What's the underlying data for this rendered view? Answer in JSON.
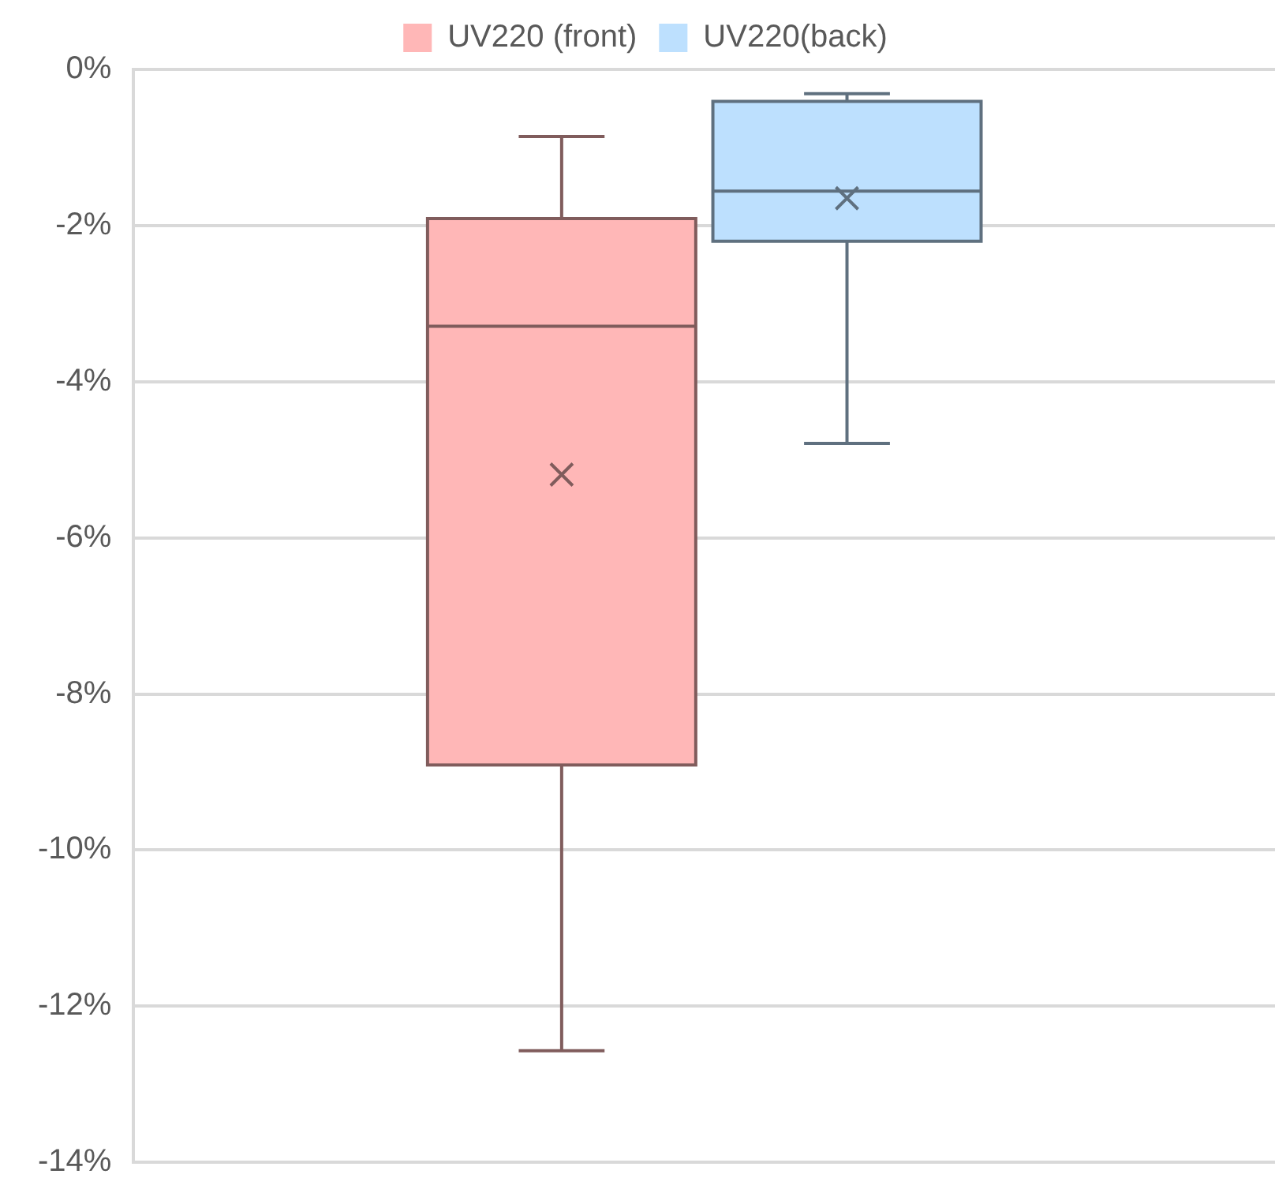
{
  "chart_data": {
    "type": "box",
    "categories": [
      null
    ],
    "series": [
      {
        "name": "UV220 (front)",
        "color": "#ffb7b7",
        "boxes": [
          {
            "low": -12.57,
            "q1": -8.91,
            "median": -3.29,
            "q3": -1.91,
            "high": -0.86,
            "mean": -5.19
          }
        ]
      },
      {
        "name": "UV220(back)",
        "color": "#bde0fe",
        "boxes": [
          {
            "low": -4.79,
            "q1": -2.2,
            "median": -1.56,
            "q3": -0.41,
            "high": -0.31,
            "mean": -1.65
          }
        ]
      }
    ],
    "ylim": [
      -14,
      0
    ],
    "yticks": [
      {
        "value": 0,
        "label": "0%"
      },
      {
        "value": -2,
        "label": "-2%"
      },
      {
        "value": -4,
        "label": "-4%"
      },
      {
        "value": -6,
        "label": "-6%"
      },
      {
        "value": -8,
        "label": "-8%"
      },
      {
        "value": -10,
        "label": "-10%"
      },
      {
        "value": -12,
        "label": "-12%"
      },
      {
        "value": -14,
        "label": "-14%"
      }
    ],
    "grid": "y",
    "legend": "top"
  }
}
